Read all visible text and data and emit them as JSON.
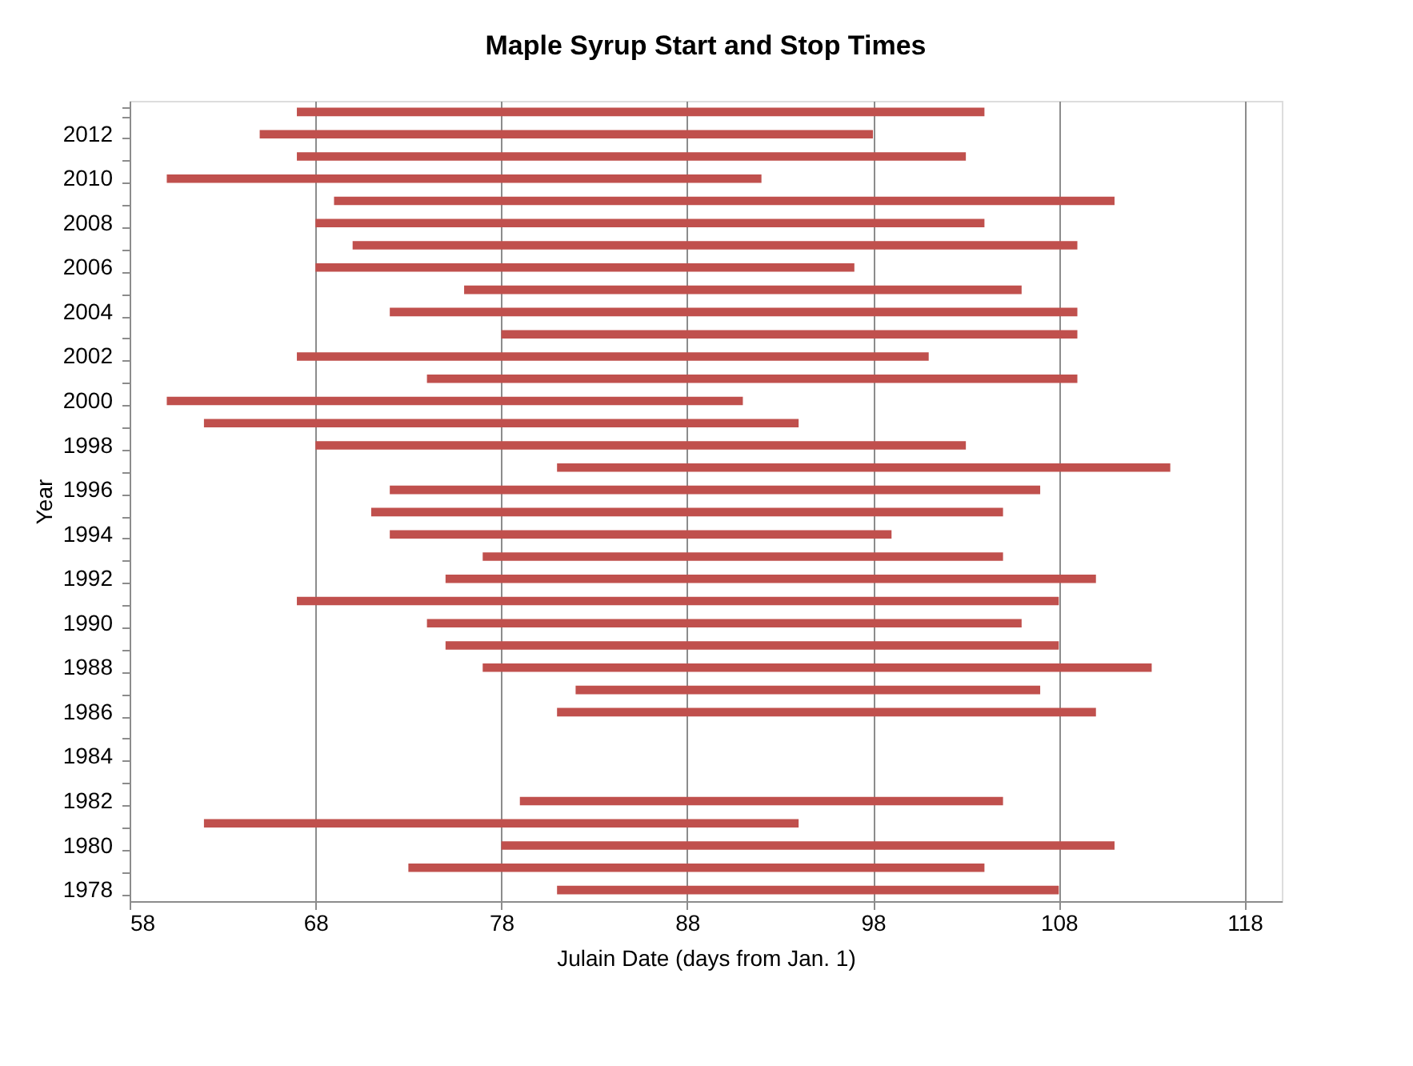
{
  "chart_data": {
    "type": "bar",
    "orientation": "horizontal",
    "title": "Maple Syrup Start and Stop Times",
    "xlabel": "Julain Date (days from Jan. 1)",
    "ylabel": "Year",
    "categories": [
      null,
      "2012",
      null,
      "2010",
      null,
      "2008",
      null,
      "2006",
      null,
      "2004",
      null,
      "2002",
      null,
      "2000",
      null,
      "1998",
      null,
      "1996",
      null,
      "1994",
      null,
      "1992",
      null,
      "1990",
      null,
      "1988",
      null,
      "1986",
      null,
      "1984",
      null,
      "1982",
      null,
      "1980",
      null,
      "1978"
    ],
    "base": [
      67,
      65,
      67,
      60,
      69,
      68,
      70,
      68,
      76,
      72,
      78,
      67,
      74,
      60,
      62,
      68,
      81,
      72,
      71,
      72,
      77,
      75,
      67,
      74,
      75,
      77,
      82,
      81,
      null,
      null,
      null,
      79,
      62,
      78,
      73,
      81
    ],
    "values": [
      37,
      33,
      36,
      32,
      42,
      36,
      39,
      29,
      30,
      37,
      31,
      34,
      35,
      31,
      32,
      35,
      33,
      35,
      34,
      27,
      28,
      35,
      41,
      32,
      33,
      36,
      25,
      29,
      null,
      null,
      null,
      26,
      32,
      33,
      31,
      27
    ],
    "color": "#c0504d",
    "xlim": [
      58,
      120
    ],
    "xticks": [
      58,
      68,
      78,
      88,
      98,
      108,
      118
    ],
    "grid": "x"
  }
}
